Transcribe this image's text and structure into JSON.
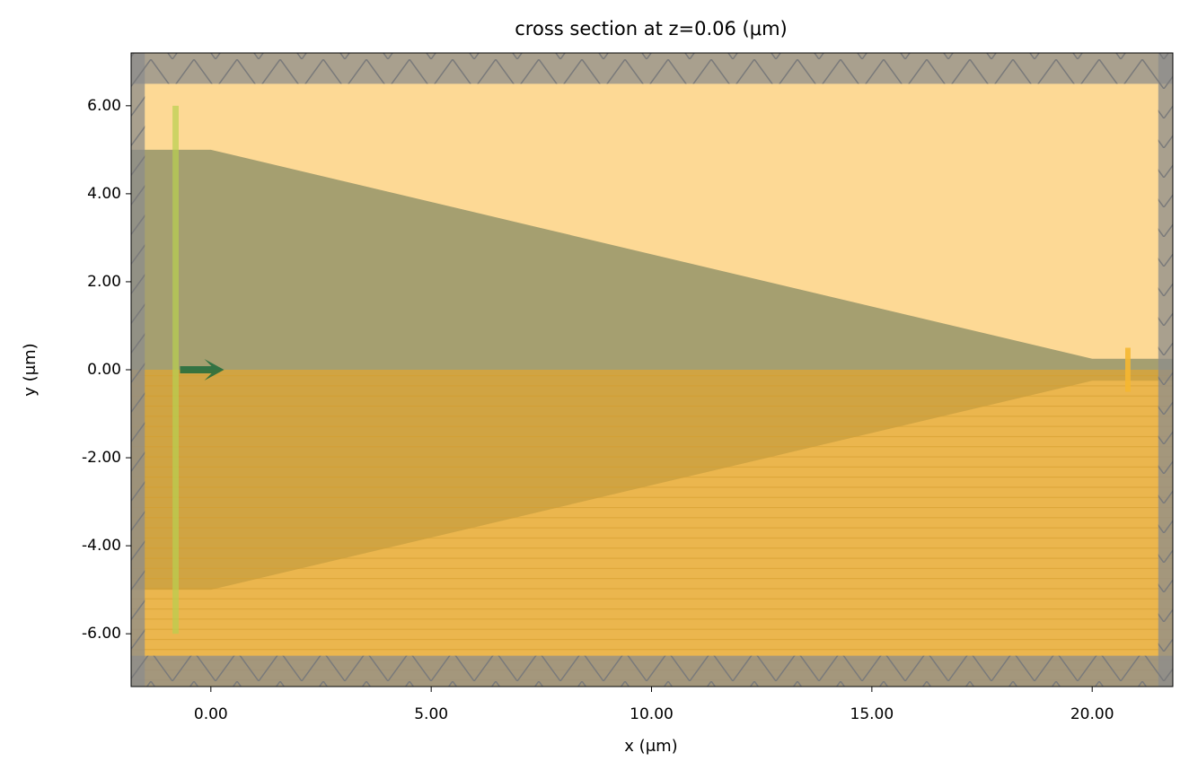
{
  "chart_data": {
    "type": "structure",
    "title": "cross section at z=0.06 (μm)",
    "xlabel": "x (μm)",
    "ylabel": "y (μm)",
    "xlim": [
      -1.81,
      21.83
    ],
    "ylim": [
      -7.2,
      7.2
    ],
    "xticks": [
      {
        "value": 0,
        "label": "0.00"
      },
      {
        "value": 5,
        "label": "5.00"
      },
      {
        "value": 10,
        "label": "10.00"
      },
      {
        "value": 15,
        "label": "15.00"
      },
      {
        "value": 20,
        "label": "20.00"
      }
    ],
    "yticks": [
      {
        "value": -6,
        "label": "-6.00"
      },
      {
        "value": -4,
        "label": "-4.00"
      },
      {
        "value": -2,
        "label": "-2.00"
      },
      {
        "value": 0,
        "label": "0.00"
      },
      {
        "value": 2,
        "label": "2.00"
      },
      {
        "value": 4,
        "label": "4.00"
      },
      {
        "value": 6,
        "label": "6.00"
      }
    ],
    "shapes": [
      {
        "x": [
          -1.81,
          21.83,
          21.83,
          -1.81
        ],
        "y": [
          -7.2,
          -7.2,
          7.2,
          7.2
        ],
        "color": "#fdd995",
        "opacity": 1
      },
      {
        "x": [
          -1.81,
          0,
          20,
          21.83,
          21.83,
          20,
          0,
          -1.81
        ],
        "y": [
          5,
          5,
          0.25,
          0.25,
          -0.25,
          -0.25,
          -5,
          -5
        ],
        "color": "#a59f70",
        "opacity": 1
      },
      {
        "x": [
          -1.81,
          21.83,
          21.83,
          -1.81
        ],
        "y": [
          -7.2,
          -7.2,
          0,
          0
        ],
        "color": "#e2a630",
        "opacity": 0.7,
        "hatch": "stripes"
      },
      {
        "x": [
          -1.81,
          21.83,
          21.83,
          -1.81
        ],
        "y": [
          6.5,
          6.5,
          7.2,
          7.2
        ],
        "color": "#8c8c8c",
        "opacity": 0.75,
        "hatch": "zigzag"
      },
      {
        "x": [
          -1.81,
          21.83,
          21.83,
          -1.81
        ],
        "y": [
          -7.2,
          -7.2,
          -6.5,
          -6.5
        ],
        "color": "#8c8c8c",
        "opacity": 0.75,
        "hatch": "zigzag"
      },
      {
        "x": [
          -1.81,
          -1.5,
          -1.5,
          -1.81
        ],
        "y": [
          -7.2,
          -7.2,
          7.2,
          7.2
        ],
        "color": "#8c8c8c",
        "opacity": 0.75,
        "hatch": "zigzag"
      },
      {
        "x": [
          21.5,
          21.83,
          21.83,
          21.5
        ],
        "y": [
          -7.2,
          -7.2,
          7.2,
          7.2
        ],
        "color": "#8c8c8c",
        "opacity": 0.75,
        "hatch": "zigzag"
      },
      {
        "x": [
          -0.87,
          -0.73,
          -0.73,
          -0.87
        ],
        "y": [
          -6,
          -6,
          6,
          6
        ],
        "color": "#b8d050",
        "opacity": 0.7
      },
      {
        "x": [
          20.75,
          20.87,
          20.87,
          20.75
        ],
        "y": [
          -0.5,
          -0.5,
          0.5,
          0.5
        ],
        "color": "#f5b731",
        "opacity": 0.9
      }
    ],
    "arrow": {
      "x": [
        -0.7,
        0.3
      ],
      "y": [
        0,
        0
      ],
      "color": "#1d6b3c"
    }
  }
}
